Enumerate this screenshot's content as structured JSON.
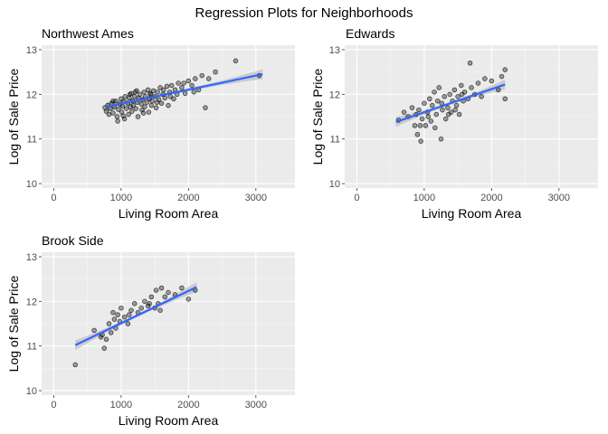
{
  "title": "Regression Plots for Neighborhoods",
  "chart_data": [
    {
      "type": "scatter",
      "title": "Northwest Ames",
      "xlabel": "Living Room Area",
      "ylabel": "Log of Sale Price",
      "xlim": [
        -180,
        3580
      ],
      "ylim": [
        9.9,
        13.1
      ],
      "xticks": [
        0,
        1000,
        2000,
        3000
      ],
      "yticks": [
        10,
        11,
        12,
        13
      ],
      "xtick_labels": [
        "0",
        "1000",
        "2000",
        "3000"
      ],
      "ytick_labels": [
        "10",
        "11",
        "12",
        "13"
      ],
      "grid": true,
      "point_color": "#000000",
      "fit_color": "#3366FF",
      "band_color": "#bdbdbd",
      "points": [
        [
          780,
          11.62
        ],
        [
          800,
          11.75
        ],
        [
          820,
          11.55
        ],
        [
          840,
          11.68
        ],
        [
          860,
          11.8
        ],
        [
          880,
          11.58
        ],
        [
          900,
          11.72
        ],
        [
          920,
          11.85
        ],
        [
          940,
          11.5
        ],
        [
          960,
          11.66
        ],
        [
          980,
          11.78
        ],
        [
          1000,
          11.9
        ],
        [
          1010,
          11.6
        ],
        [
          1020,
          11.73
        ],
        [
          1040,
          11.84
        ],
        [
          1050,
          11.45
        ],
        [
          1060,
          11.95
        ],
        [
          1080,
          11.68
        ],
        [
          1100,
          11.8
        ],
        [
          1110,
          11.55
        ],
        [
          1120,
          11.92
        ],
        [
          1140,
          11.72
        ],
        [
          1150,
          12.02
        ],
        [
          1160,
          11.62
        ],
        [
          1170,
          11.85
        ],
        [
          1180,
          11.75
        ],
        [
          1200,
          11.95
        ],
        [
          1210,
          12.05
        ],
        [
          1220,
          11.68
        ],
        [
          1240,
          11.82
        ],
        [
          1250,
          11.5
        ],
        [
          1260,
          11.92
        ],
        [
          1280,
          12.0
        ],
        [
          1300,
          11.78
        ],
        [
          1310,
          11.65
        ],
        [
          1320,
          11.88
        ],
        [
          1340,
          12.05
        ],
        [
          1350,
          11.72
        ],
        [
          1360,
          11.95
        ],
        [
          1380,
          11.82
        ],
        [
          1400,
          12.1
        ],
        [
          1410,
          11.6
        ],
        [
          1420,
          11.9
        ],
        [
          1440,
          12.0
        ],
        [
          1450,
          11.75
        ],
        [
          1460,
          11.85
        ],
        [
          1480,
          12.08
        ],
        [
          1500,
          11.95
        ],
        [
          1520,
          11.7
        ],
        [
          1540,
          12.05
        ],
        [
          1560,
          11.88
        ],
        [
          1580,
          12.15
        ],
        [
          1600,
          11.8
        ],
        [
          1620,
          12.0
        ],
        [
          1650,
          11.92
        ],
        [
          1680,
          12.18
        ],
        [
          1700,
          11.75
        ],
        [
          1720,
          12.05
        ],
        [
          1750,
          12.2
        ],
        [
          1780,
          11.9
        ],
        [
          1800,
          12.1
        ],
        [
          1850,
          12.25
        ],
        [
          1900,
          12.15
        ],
        [
          1950,
          12.02
        ],
        [
          2000,
          12.3
        ],
        [
          2050,
          12.2
        ],
        [
          2100,
          12.35
        ],
        [
          2150,
          12.1
        ],
        [
          2200,
          12.42
        ],
        [
          2250,
          11.7
        ],
        [
          2300,
          12.35
        ],
        [
          2400,
          12.5
        ],
        [
          2700,
          12.75
        ],
        [
          3050,
          12.42
        ],
        [
          760,
          11.7
        ],
        [
          880,
          11.85
        ],
        [
          950,
          11.4
        ],
        [
          1030,
          11.52
        ],
        [
          1130,
          12.0
        ],
        [
          1230,
          12.08
        ],
        [
          1330,
          11.58
        ],
        [
          1430,
          12.02
        ],
        [
          1530,
          11.82
        ],
        [
          1630,
          12.1
        ],
        [
          1730,
          11.95
        ],
        [
          1830,
          12.0
        ],
        [
          1930,
          12.25
        ],
        [
          2080,
          12.05
        ]
      ],
      "fit": [
        [
          780,
          11.72
        ],
        [
          3100,
          12.45
        ]
      ]
    },
    {
      "type": "scatter",
      "title": "Edwards",
      "xlabel": "Living Room Area",
      "ylabel": "Log of Sale Price",
      "xlim": [
        -180,
        3580
      ],
      "ylim": [
        9.9,
        13.1
      ],
      "xticks": [
        0,
        1000,
        2000,
        3000
      ],
      "yticks": [
        10,
        11,
        12,
        13
      ],
      "xtick_labels": [
        "0",
        "1000",
        "2000",
        "3000"
      ],
      "ytick_labels": [
        "10",
        "11",
        "12",
        "13"
      ],
      "grid": true,
      "point_color": "#000000",
      "fit_color": "#3366FF",
      "band_color": "#bdbdbd",
      "points": [
        [
          620,
          11.42
        ],
        [
          700,
          11.6
        ],
        [
          760,
          11.5
        ],
        [
          820,
          11.7
        ],
        [
          860,
          11.3
        ],
        [
          880,
          11.55
        ],
        [
          900,
          11.1
        ],
        [
          920,
          11.65
        ],
        [
          950,
          10.95
        ],
        [
          970,
          11.45
        ],
        [
          1000,
          11.8
        ],
        [
          1020,
          11.3
        ],
        [
          1050,
          11.6
        ],
        [
          1080,
          11.9
        ],
        [
          1100,
          11.4
        ],
        [
          1120,
          11.75
        ],
        [
          1150,
          12.05
        ],
        [
          1180,
          11.55
        ],
        [
          1200,
          11.85
        ],
        [
          1220,
          12.15
        ],
        [
          1250,
          11.0
        ],
        [
          1270,
          11.65
        ],
        [
          1300,
          11.95
        ],
        [
          1320,
          11.45
        ],
        [
          1350,
          11.7
        ],
        [
          1380,
          12.0
        ],
        [
          1400,
          11.6
        ],
        [
          1420,
          11.85
        ],
        [
          1450,
          12.1
        ],
        [
          1480,
          11.75
        ],
        [
          1500,
          11.95
        ],
        [
          1520,
          11.55
        ],
        [
          1550,
          12.2
        ],
        [
          1580,
          11.85
        ],
        [
          1600,
          12.05
        ],
        [
          1650,
          11.9
        ],
        [
          1680,
          12.7
        ],
        [
          1700,
          12.15
        ],
        [
          1750,
          12.0
        ],
        [
          1800,
          12.25
        ],
        [
          1850,
          11.95
        ],
        [
          1900,
          12.35
        ],
        [
          2000,
          12.3
        ],
        [
          2100,
          12.1
        ],
        [
          2150,
          12.4
        ],
        [
          2200,
          12.55
        ],
        [
          2200,
          11.9
        ],
        [
          940,
          11.3
        ],
        [
          1060,
          11.5
        ],
        [
          1160,
          11.25
        ],
        [
          1260,
          11.8
        ],
        [
          1360,
          11.55
        ],
        [
          1460,
          11.65
        ],
        [
          1560,
          12.0
        ]
      ],
      "fit": [
        [
          580,
          11.38
        ],
        [
          2200,
          12.22
        ]
      ]
    },
    {
      "type": "scatter",
      "title": "Brook Side",
      "xlabel": "Living Room Area",
      "ylabel": "Log of Sale Price",
      "xlim": [
        -180,
        3580
      ],
      "ylim": [
        9.9,
        13.1
      ],
      "xticks": [
        0,
        1000,
        2000,
        3000
      ],
      "yticks": [
        10,
        11,
        12,
        13
      ],
      "xtick_labels": [
        "0",
        "1000",
        "2000",
        "3000"
      ],
      "ytick_labels": [
        "10",
        "11",
        "12",
        "13"
      ],
      "grid": true,
      "point_color": "#000000",
      "fit_color": "#3366FF",
      "band_color": "#bdbdbd",
      "points": [
        [
          320,
          10.58
        ],
        [
          600,
          11.35
        ],
        [
          700,
          11.2
        ],
        [
          750,
          10.95
        ],
        [
          780,
          11.15
        ],
        [
          820,
          11.5
        ],
        [
          850,
          11.3
        ],
        [
          880,
          11.75
        ],
        [
          900,
          11.6
        ],
        [
          920,
          11.4
        ],
        [
          950,
          11.7
        ],
        [
          980,
          11.55
        ],
        [
          1000,
          11.85
        ],
        [
          1050,
          11.65
        ],
        [
          1100,
          11.5
        ],
        [
          1150,
          11.8
        ],
        [
          1200,
          11.95
        ],
        [
          1250,
          11.75
        ],
        [
          1300,
          11.85
        ],
        [
          1350,
          12.0
        ],
        [
          1400,
          11.9
        ],
        [
          1450,
          12.1
        ],
        [
          1500,
          11.85
        ],
        [
          1520,
          12.25
        ],
        [
          1550,
          11.95
        ],
        [
          1600,
          12.3
        ],
        [
          1650,
          12.1
        ],
        [
          1700,
          12.2
        ],
        [
          1800,
          12.15
        ],
        [
          1900,
          12.3
        ],
        [
          2000,
          12.05
        ],
        [
          2100,
          12.25
        ],
        [
          720,
          11.25
        ],
        [
          1120,
          11.7
        ],
        [
          1420,
          11.95
        ],
        [
          1580,
          11.8
        ]
      ],
      "fit": [
        [
          320,
          11.02
        ],
        [
          2120,
          12.32
        ]
      ]
    }
  ]
}
